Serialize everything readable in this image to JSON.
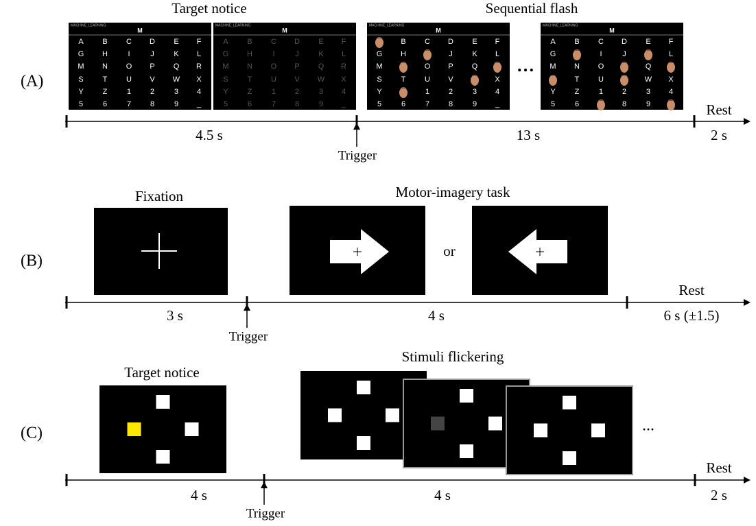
{
  "panels": [
    {
      "label": "(A)",
      "titles": [
        "Target notice",
        "Sequential flash"
      ],
      "segments": [
        "4.5 s",
        "13 s",
        "2 s"
      ],
      "rest": "Rest",
      "trigger": "Trigger",
      "ellipsis": "…"
    },
    {
      "label": "(B)",
      "titles": [
        "Fixation",
        "Motor-imagery task"
      ],
      "segments": [
        "3 s",
        "4 s",
        "6 s (±1.5)"
      ],
      "rest": "Rest",
      "trigger": "Trigger",
      "or": "or"
    },
    {
      "label": "(C)",
      "titles": [
        "Target notice",
        "Stimuli flickering"
      ],
      "segments": [
        "4 s",
        "4 s",
        "2 s"
      ],
      "rest": "Rest",
      "trigger": "Trigger",
      "ellipsis": "..."
    }
  ],
  "speller": {
    "header": "MACHINE_LEARNING",
    "target": "M",
    "chars": [
      [
        "A",
        "B",
        "C",
        "D",
        "E",
        "F"
      ],
      [
        "G",
        "H",
        "I",
        "J",
        "K",
        "L"
      ],
      [
        "M",
        "N",
        "O",
        "P",
        "Q",
        "R"
      ],
      [
        "S",
        "T",
        "U",
        "V",
        "W",
        "X"
      ],
      [
        "Y",
        "Z",
        "1",
        "2",
        "3",
        "4"
      ],
      [
        "5",
        "6",
        "7",
        "8",
        "9",
        "_"
      ]
    ]
  }
}
